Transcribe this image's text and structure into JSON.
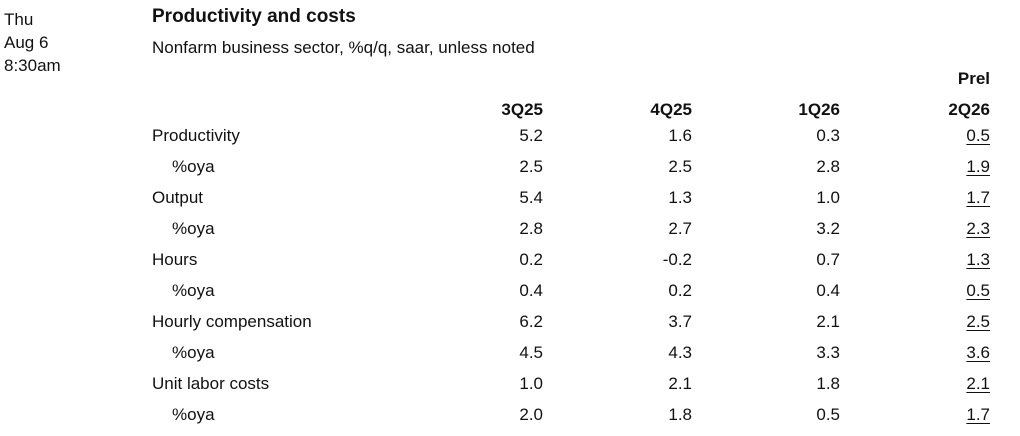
{
  "release": {
    "day": "Thu",
    "date": "Aug 6",
    "time": "8:30am"
  },
  "title": "Productivity and costs",
  "subtitle": "Nonfarm business sector, %q/q, saar, unless noted",
  "prel_label": "Prel",
  "columns": [
    "3Q25",
    "4Q25",
    "1Q26",
    "2Q26"
  ],
  "rows": [
    {
      "label": "Productivity",
      "values": [
        "5.2",
        "1.6",
        "0.3",
        "0.5"
      ]
    },
    {
      "label": "%oya",
      "values": [
        "2.5",
        "2.5",
        "2.8",
        "1.9"
      ]
    },
    {
      "label": "Output",
      "values": [
        "5.4",
        "1.3",
        "1.0",
        "1.7"
      ]
    },
    {
      "label": "%oya",
      "values": [
        "2.8",
        "2.7",
        "3.2",
        "2.3"
      ]
    },
    {
      "label": "Hours",
      "values": [
        "0.2",
        "-0.2",
        "0.7",
        "1.3"
      ]
    },
    {
      "label": "%oya",
      "values": [
        "0.4",
        "0.2",
        "0.4",
        "0.5"
      ]
    },
    {
      "label": "Hourly compensation",
      "values": [
        "6.2",
        "3.7",
        "2.1",
        "2.5"
      ]
    },
    {
      "label": "%oya",
      "values": [
        "4.5",
        "4.3",
        "3.3",
        "3.6"
      ]
    },
    {
      "label": "Unit labor costs",
      "values": [
        "1.0",
        "2.1",
        "1.8",
        "2.1"
      ]
    },
    {
      "label": "%oya",
      "values": [
        "2.0",
        "1.8",
        "0.5",
        "1.7"
      ]
    }
  ]
}
